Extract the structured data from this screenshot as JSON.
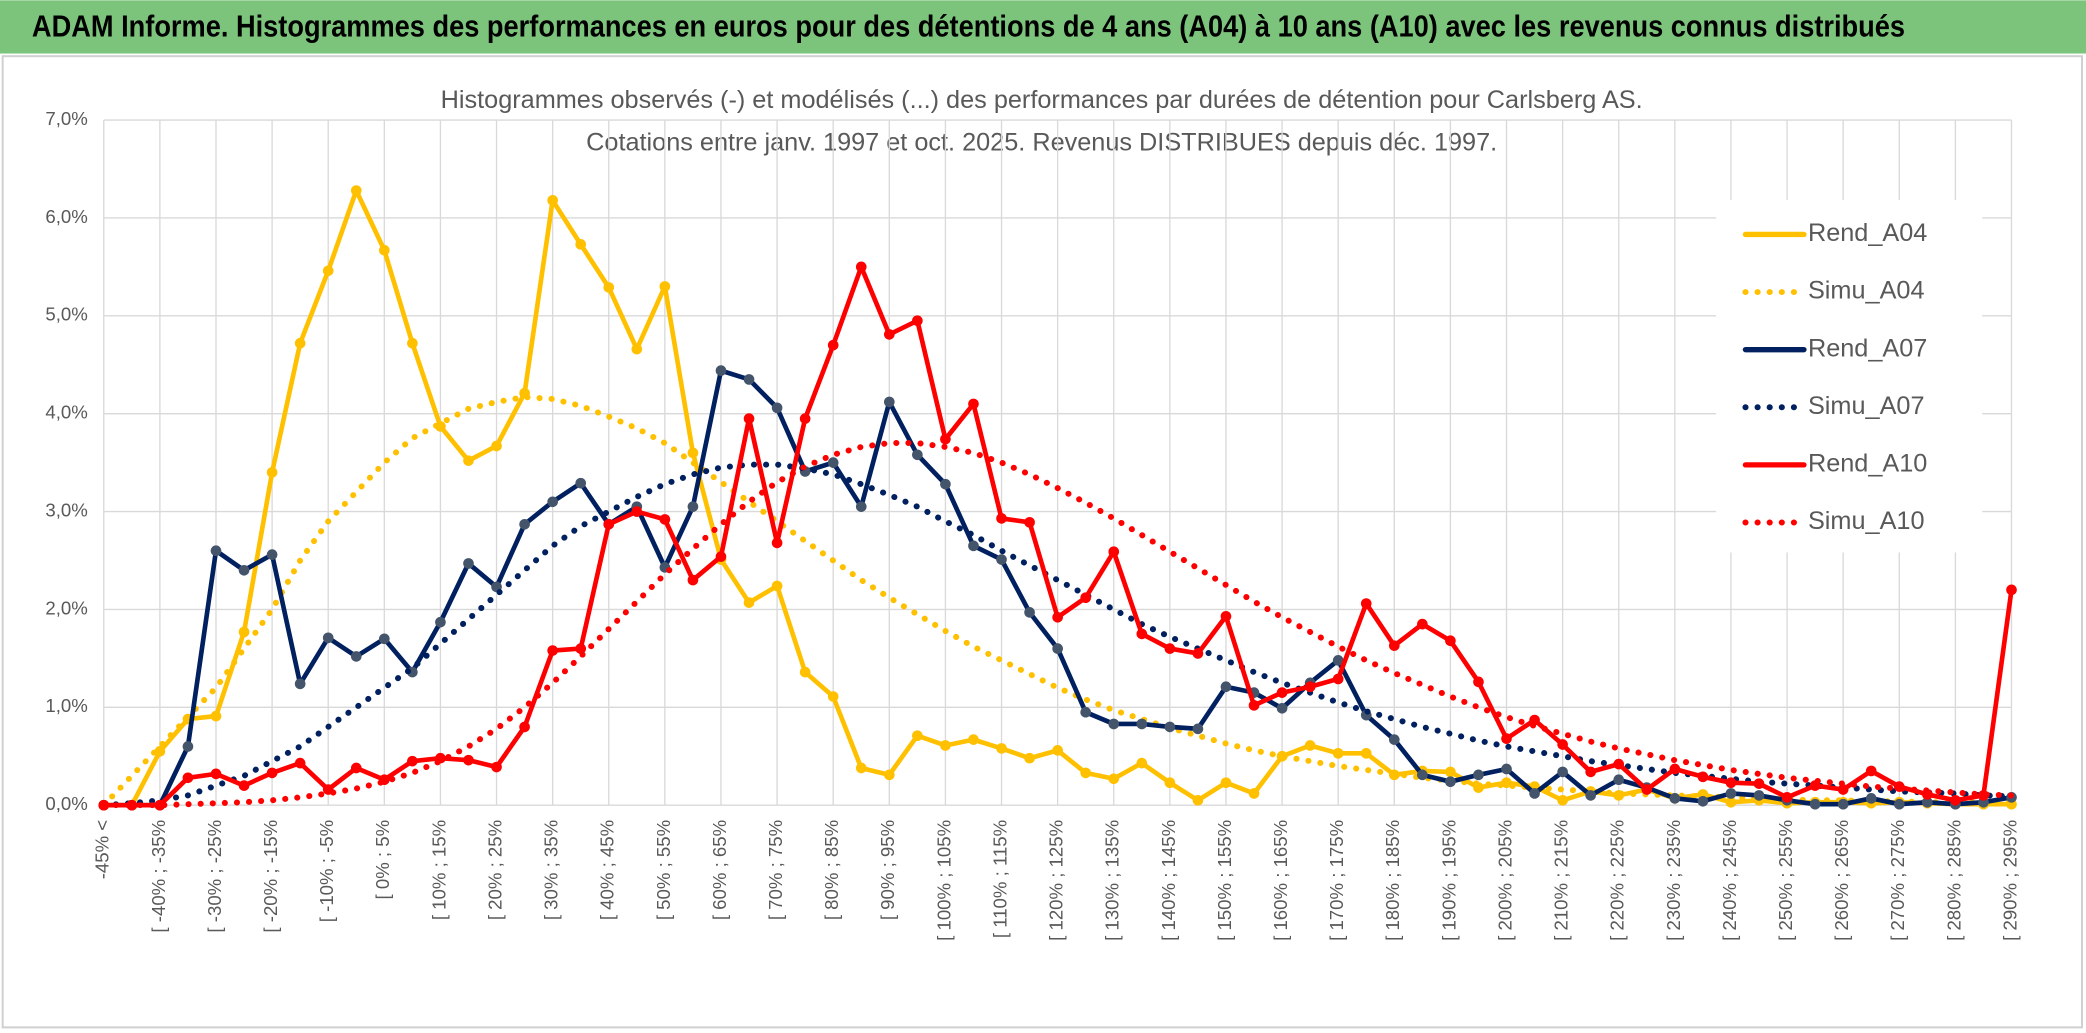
{
  "header": {
    "title": "ADAM Informe. Histogrammes des performances en euros pour des détentions de 4 ans (A04) à 10 ans (A10) avec les revenus connus distribués"
  },
  "chart_data": {
    "type": "line",
    "title": "Histogrammes observés (-) et modélisés (...) des performances par durées de détention pour Carlsberg AS.",
    "subtitle": "Cotations entre janv. 1997 et oct. 2025. Revenus DISTRIBUES depuis déc. 1997.",
    "categories": [
      "-45% <",
      null,
      "[ -40% ; -35%",
      null,
      "[ -30% ; -25%",
      null,
      "[ -20% ; -15%",
      null,
      "[ -10% ; -5%",
      null,
      "[ 0% ; 5%",
      null,
      "[ 10% ; 15%",
      null,
      "[ 20% ; 25%",
      null,
      "[ 30% ; 35%",
      null,
      "[ 40% ; 45%",
      null,
      "[ 50% ; 55%",
      null,
      "[ 60% ; 65%",
      null,
      "[ 70% ; 75%",
      null,
      "[ 80% ; 85%",
      null,
      "[ 90% ; 95%",
      null,
      "[ 100% ; 105%",
      null,
      "[ 110% ; 115%",
      null,
      "[ 120% ; 125%",
      null,
      "[ 130% ; 135%",
      null,
      "[ 140% ; 145%",
      null,
      "[ 150% ; 155%",
      null,
      "[ 160% ; 165%",
      null,
      "[ 170% ; 175%",
      null,
      "[ 180% ; 185%",
      null,
      "[ 190% ; 195%",
      null,
      "[ 200% ; 205%",
      null,
      "[ 210% ; 215%",
      null,
      "[ 220% ; 225%",
      null,
      "[ 230% ; 235%",
      null,
      "[ 240% ; 245%",
      null,
      "[ 250% ; 255%",
      null,
      "[ 260% ; 265%",
      null,
      "[ 270% ; 275%",
      null,
      "[ 280% ; 285%",
      null,
      "[ 290% ; 295%"
    ],
    "ylim": [
      0,
      7
    ],
    "yticks": [
      {
        "value": 0,
        "label": "0,0%"
      },
      {
        "value": 1,
        "label": "1,0%"
      },
      {
        "value": 2,
        "label": "2,0%"
      },
      {
        "value": 3,
        "label": "3,0%"
      },
      {
        "value": 4,
        "label": "4,0%"
      },
      {
        "value": 5,
        "label": "5,0%"
      },
      {
        "value": 6,
        "label": "6,0%"
      },
      {
        "value": 7,
        "label": "7,0%"
      }
    ],
    "grid": true,
    "legend": "right",
    "series": [
      {
        "name": "Rend_A04",
        "color": "#FFC000",
        "style": "solid",
        "marker": true,
        "values": [
          0,
          0,
          0.55,
          0.88,
          0.91,
          1.77,
          3.4,
          4.72,
          5.46,
          6.28,
          5.67,
          4.72,
          3.87,
          3.52,
          3.67,
          4.21,
          6.18,
          5.73,
          5.29,
          4.66,
          5.3,
          3.6,
          2.51,
          2.07,
          2.24,
          1.36,
          1.11,
          0.38,
          0.31,
          0.71,
          0.61,
          0.67,
          0.58,
          0.48,
          0.56,
          0.33,
          0.27,
          0.43,
          0.23,
          0.05,
          0.23,
          0.12,
          0.5,
          0.61,
          0.53,
          0.53,
          0.31,
          0.35,
          0.34,
          0.18,
          0.23,
          0.19,
          0.05,
          0.14,
          0.1,
          0.16,
          0.07,
          0.11,
          0.03,
          0.05,
          0.02,
          0.03,
          0.03,
          0.02,
          0.03,
          0.02,
          0.01,
          0.01,
          0.01
        ]
      },
      {
        "name": "Simu_A04",
        "color": "#FFC000",
        "style": "dotted",
        "marker": false,
        "values": [
          0,
          0.3,
          0.6,
          0.9,
          1.2,
          1.6,
          2.0,
          2.5,
          2.9,
          3.2,
          3.5,
          3.75,
          3.9,
          4.05,
          4.12,
          4.17,
          4.15,
          4.08,
          3.97,
          3.85,
          3.7,
          3.5,
          3.3,
          3.1,
          2.9,
          2.7,
          2.5,
          2.3,
          2.12,
          1.95,
          1.78,
          1.62,
          1.48,
          1.34,
          1.2,
          1.08,
          0.97,
          0.88,
          0.79,
          0.71,
          0.63,
          0.56,
          0.5,
          0.45,
          0.4,
          0.36,
          0.32,
          0.28,
          0.25,
          0.22,
          0.2,
          0.18,
          0.16,
          0.14,
          0.12,
          0.11,
          0.1,
          0.09,
          0.08,
          0.07,
          0.06,
          0.05,
          0.05,
          0.04,
          0.04,
          0.03,
          0.03,
          0.03,
          0.02
        ]
      },
      {
        "name": "Rend_A07",
        "color": "#002060",
        "marker_color": "#44546A",
        "style": "solid",
        "marker": true,
        "values": [
          0,
          0,
          0,
          0.6,
          2.6,
          2.4,
          2.56,
          1.24,
          1.71,
          1.52,
          1.7,
          1.36,
          1.87,
          2.47,
          2.23,
          2.87,
          3.1,
          3.29,
          2.87,
          3.05,
          2.43,
          3.05,
          4.44,
          4.35,
          4.06,
          3.41,
          3.5,
          3.05,
          4.12,
          3.58,
          3.28,
          2.65,
          2.51,
          1.97,
          1.6,
          0.95,
          0.83,
          0.83,
          0.8,
          0.78,
          1.21,
          1.15,
          0.99,
          1.25,
          1.48,
          0.92,
          0.67,
          0.31,
          0.24,
          0.31,
          0.37,
          0.12,
          0.34,
          0.1,
          0.26,
          0.18,
          0.07,
          0.04,
          0.12,
          0.1,
          0.05,
          0.01,
          0.01,
          0.07,
          0.01,
          0.03,
          0.01,
          0.03,
          0.08
        ]
      },
      {
        "name": "Simu_A07",
        "color": "#002060",
        "style": "dotted",
        "marker": false,
        "values": [
          0,
          0.02,
          0.05,
          0.1,
          0.2,
          0.3,
          0.45,
          0.6,
          0.8,
          1.0,
          1.2,
          1.4,
          1.65,
          1.9,
          2.15,
          2.4,
          2.65,
          2.85,
          3.0,
          3.15,
          3.28,
          3.38,
          3.45,
          3.48,
          3.48,
          3.44,
          3.38,
          3.28,
          3.17,
          3.05,
          2.9,
          2.76,
          2.6,
          2.45,
          2.3,
          2.15,
          2.0,
          1.85,
          1.72,
          1.6,
          1.48,
          1.36,
          1.25,
          1.15,
          1.05,
          0.96,
          0.88,
          0.8,
          0.73,
          0.66,
          0.6,
          0.55,
          0.5,
          0.45,
          0.41,
          0.37,
          0.33,
          0.3,
          0.27,
          0.24,
          0.22,
          0.2,
          0.18,
          0.16,
          0.14,
          0.13,
          0.12,
          0.1,
          0.09
        ]
      },
      {
        "name": "Rend_A10",
        "color": "#FF0000",
        "style": "solid",
        "marker": true,
        "values": [
          0,
          0,
          0,
          0.28,
          0.32,
          0.2,
          0.33,
          0.43,
          0.16,
          0.38,
          0.26,
          0.45,
          0.48,
          0.46,
          0.39,
          0.8,
          1.58,
          1.6,
          2.87,
          3.0,
          2.92,
          2.3,
          2.54,
          3.95,
          2.68,
          3.95,
          4.7,
          5.5,
          4.81,
          4.95,
          3.74,
          4.1,
          2.93,
          2.89,
          1.92,
          2.12,
          2.59,
          1.75,
          1.6,
          1.55,
          1.93,
          1.02,
          1.15,
          1.21,
          1.29,
          2.06,
          1.63,
          1.85,
          1.68,
          1.26,
          0.68,
          0.87,
          0.62,
          0.34,
          0.42,
          0.16,
          0.37,
          0.29,
          0.23,
          0.22,
          0.08,
          0.2,
          0.16,
          0.35,
          0.19,
          0.11,
          0.05,
          0.1,
          2.2
        ]
      },
      {
        "name": "Simu_A10",
        "color": "#FF0000",
        "style": "dotted",
        "marker": false,
        "values": [
          0,
          0,
          0,
          0.01,
          0.02,
          0.03,
          0.05,
          0.08,
          0.12,
          0.17,
          0.24,
          0.33,
          0.45,
          0.6,
          0.78,
          1.0,
          1.25,
          1.52,
          1.8,
          2.08,
          2.36,
          2.62,
          2.87,
          3.1,
          3.3,
          3.46,
          3.58,
          3.66,
          3.7,
          3.7,
          3.66,
          3.6,
          3.5,
          3.38,
          3.24,
          3.09,
          2.93,
          2.76,
          2.59,
          2.42,
          2.25,
          2.08,
          1.92,
          1.77,
          1.62,
          1.48,
          1.35,
          1.23,
          1.11,
          1.0,
          0.9,
          0.81,
          0.73,
          0.65,
          0.58,
          0.52,
          0.46,
          0.41,
          0.36,
          0.32,
          0.28,
          0.25,
          0.22,
          0.19,
          0.17,
          0.15,
          0.13,
          0.11,
          0.1
        ]
      }
    ]
  }
}
